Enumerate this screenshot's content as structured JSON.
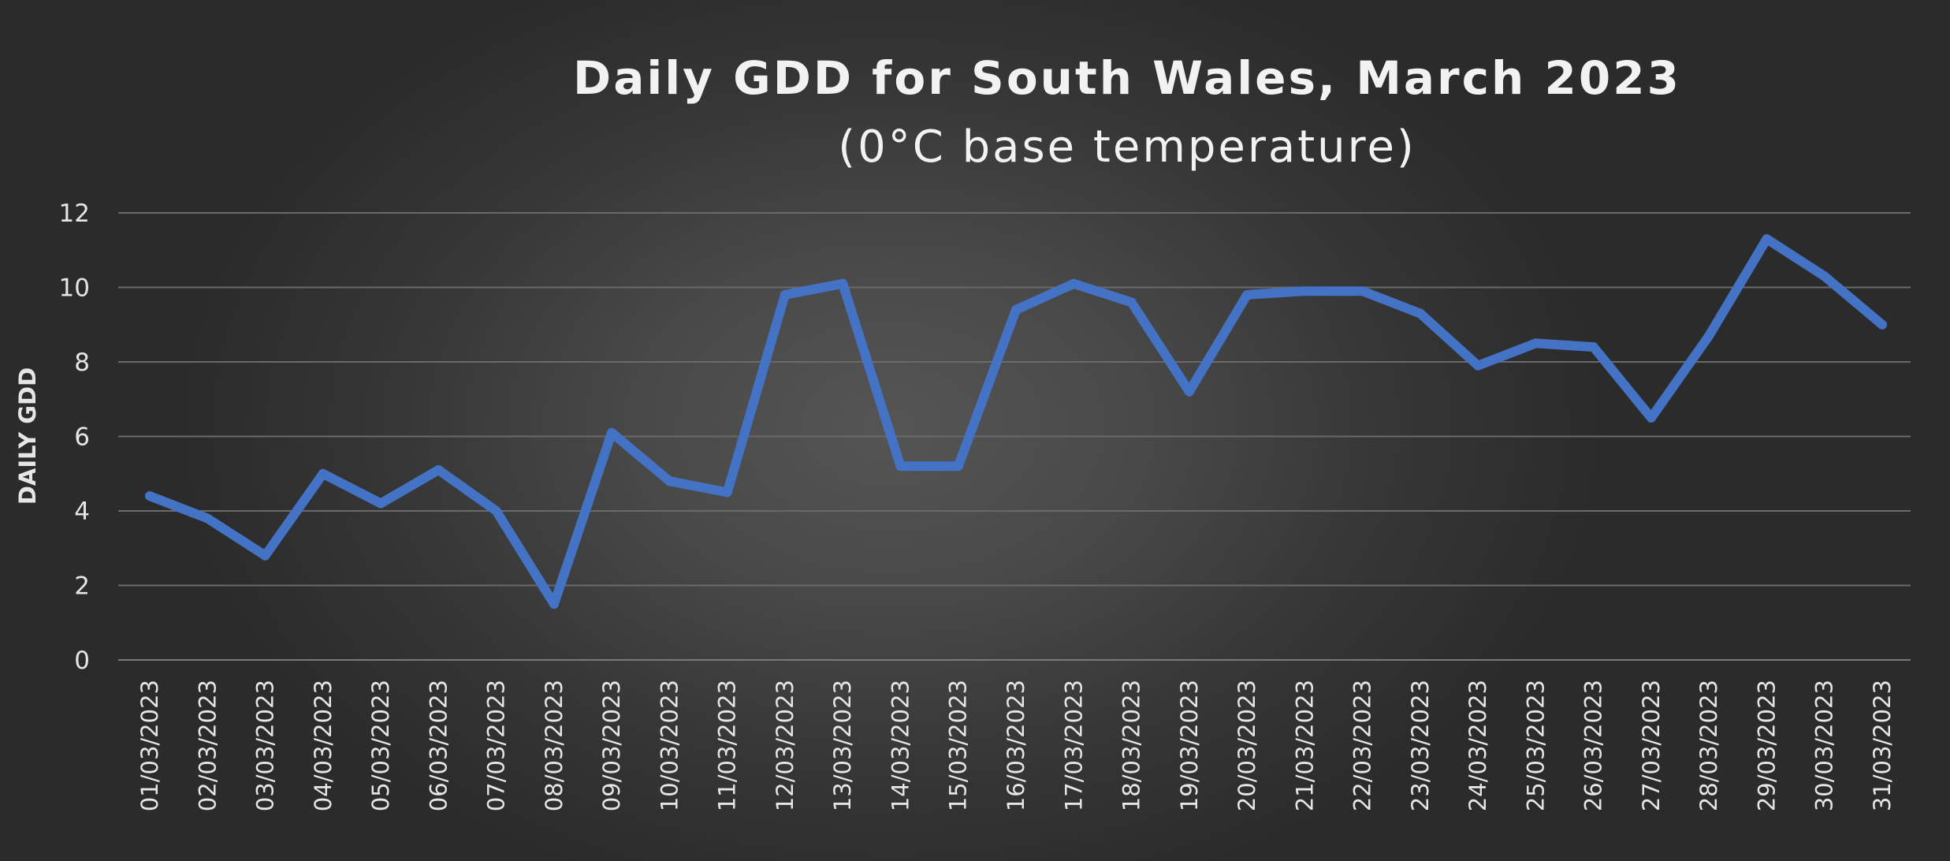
{
  "chart_data": {
    "type": "line",
    "title": "Daily GDD for South Wales, March 2023",
    "subtitle": "(0°C base temperature)",
    "xlabel": "",
    "ylabel": "DAILY GDD",
    "ylim": [
      0,
      12
    ],
    "yticks": [
      "0",
      "2",
      "4",
      "6",
      "8",
      "10",
      "12"
    ],
    "grid": true,
    "legend": "none",
    "colors": {
      "series": "#4472c4",
      "background": "#363636",
      "text": "#e6e6e6"
    },
    "categories": [
      "01/03/2023",
      "02/03/2023",
      "03/03/2023",
      "04/03/2023",
      "05/03/2023",
      "06/03/2023",
      "07/03/2023",
      "08/03/2023",
      "09/03/2023",
      "10/03/2023",
      "11/03/2023",
      "12/03/2023",
      "13/03/2023",
      "14/03/2023",
      "15/03/2023",
      "16/03/2023",
      "17/03/2023",
      "18/03/2023",
      "19/03/2023",
      "20/03/2023",
      "21/03/2023",
      "22/03/2023",
      "23/03/2023",
      "24/03/2023",
      "25/03/2023",
      "26/03/2023",
      "27/03/2023",
      "28/03/2023",
      "29/03/2023",
      "30/03/2023",
      "31/03/2023"
    ],
    "series": [
      {
        "values": [
          4.4,
          3.8,
          2.8,
          5.0,
          4.2,
          5.1,
          4.0,
          1.5,
          6.1,
          4.8,
          4.5,
          9.8,
          10.1,
          5.2,
          5.2,
          9.4,
          10.1,
          9.6,
          7.2,
          9.8,
          9.9,
          9.9,
          9.3,
          7.9,
          8.5,
          8.4,
          6.5,
          8.7,
          11.3,
          10.3,
          9.0
        ]
      }
    ]
  }
}
